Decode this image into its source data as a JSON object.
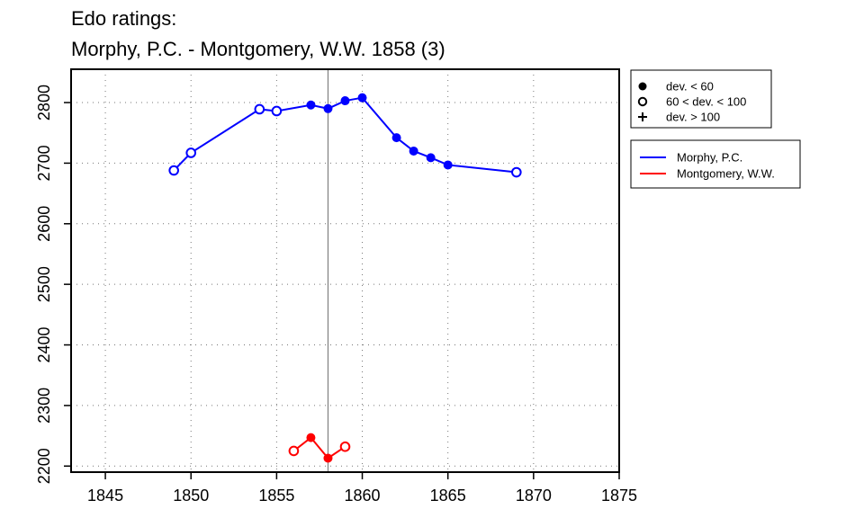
{
  "chart_data": {
    "type": "line",
    "title": "Edo ratings:",
    "subtitle": "Morphy, P.C. - Montgomery, W.W. 1858 (3)",
    "xlabel": "",
    "ylabel": "",
    "xlim": [
      1843,
      1875
    ],
    "ylim": [
      2190,
      2855
    ],
    "x_ticks": [
      1845,
      1850,
      1855,
      1860,
      1865,
      1870,
      1875
    ],
    "y_ticks": [
      2200,
      2300,
      2400,
      2500,
      2600,
      2700,
      2800
    ],
    "grid": true,
    "grid_style": "dotted",
    "vertical_marker": {
      "x": 1858,
      "color": "#808080"
    },
    "symbol_legend": [
      {
        "marker": "filled-circle",
        "label": "dev. < 60"
      },
      {
        "marker": "open-circle",
        "label": "60 < dev. < 100"
      },
      {
        "marker": "plus",
        "label": "dev. > 100"
      }
    ],
    "series": [
      {
        "name": "Morphy, P.C.",
        "color": "#0000ff",
        "x": [
          1849,
          1850,
          1854,
          1855,
          1857,
          1858,
          1859,
          1860,
          1862,
          1863,
          1864,
          1865,
          1869
        ],
        "y": [
          2688,
          2717,
          2789,
          2786,
          2796,
          2790,
          2803,
          2808,
          2742,
          2720,
          2709,
          2697,
          2685
        ],
        "markers": [
          "open",
          "open",
          "open",
          "open",
          "filled",
          "filled",
          "filled",
          "filled",
          "filled",
          "filled",
          "filled",
          "filled",
          "open"
        ]
      },
      {
        "name": "Montgomery, W.W.",
        "color": "#ff0000",
        "x": [
          1856,
          1857,
          1858,
          1859
        ],
        "y": [
          2225,
          2247,
          2213,
          2232
        ],
        "markers": [
          "open",
          "filled",
          "filled",
          "open"
        ]
      }
    ]
  }
}
